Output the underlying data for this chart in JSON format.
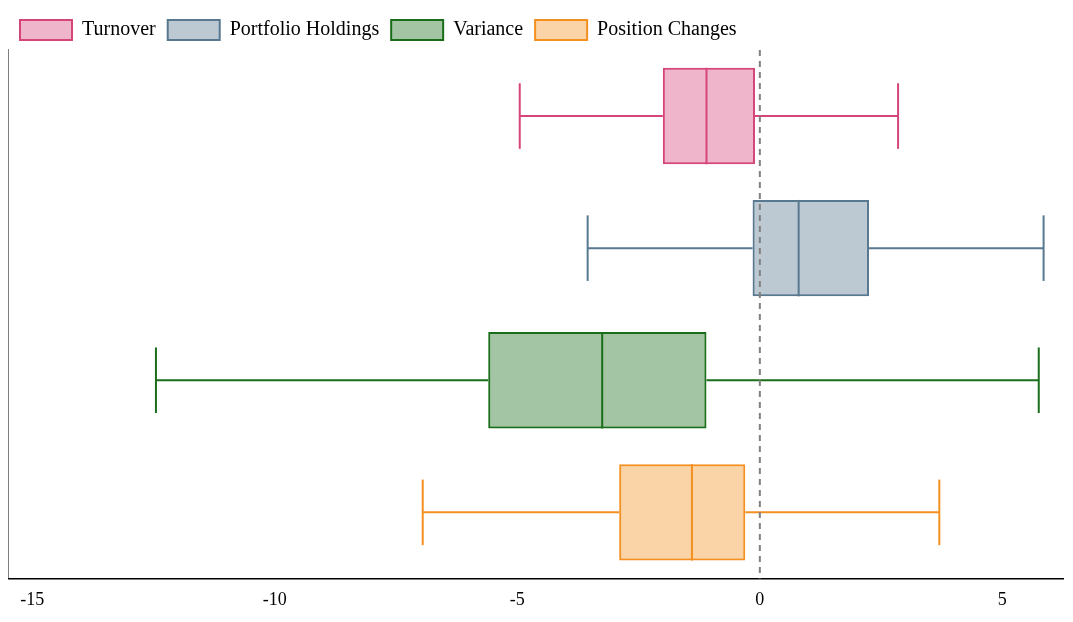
{
  "chart_data": {
    "type": "box",
    "orientation": "horizontal",
    "categories": [
      null,
      null,
      null,
      null
    ],
    "series": [
      {
        "name": "Turnover",
        "color": "#d6457a",
        "boxes": [
          {
            "low": -4.95,
            "q1": -2.0,
            "median": -1.1,
            "q3": -0.1,
            "high": 2.85
          },
          null,
          null,
          null
        ]
      },
      {
        "name": "Portfolio Holdings",
        "color": "#587890",
        "boxes": [
          null,
          {
            "low": -3.55,
            "q1": -0.15,
            "median": 0.8,
            "q3": 2.25,
            "high": 5.85
          },
          null,
          null
        ]
      },
      {
        "name": "Variance",
        "color": "#1a6e1a",
        "boxes": [
          null,
          null,
          {
            "low": -12.45,
            "q1": -5.6,
            "median": -3.25,
            "q3": -1.1,
            "high": 5.75
          },
          null
        ]
      },
      {
        "name": "Position Changes",
        "color": "#f39020",
        "boxes": [
          null,
          null,
          null,
          {
            "low": -6.95,
            "q1": -2.9,
            "median": -1.4,
            "q3": -0.3,
            "high": 3.7
          }
        ]
      }
    ],
    "xlim": [
      -15.5,
      6.25
    ],
    "xticks": [
      -15,
      -10,
      -5,
      0,
      5
    ],
    "tick_labels": "x",
    "grid": false,
    "legend": "top left",
    "ref_lines": [
      {
        "axis": "x",
        "value": 0,
        "color": "#808080",
        "line_style": "dashed"
      }
    ]
  }
}
